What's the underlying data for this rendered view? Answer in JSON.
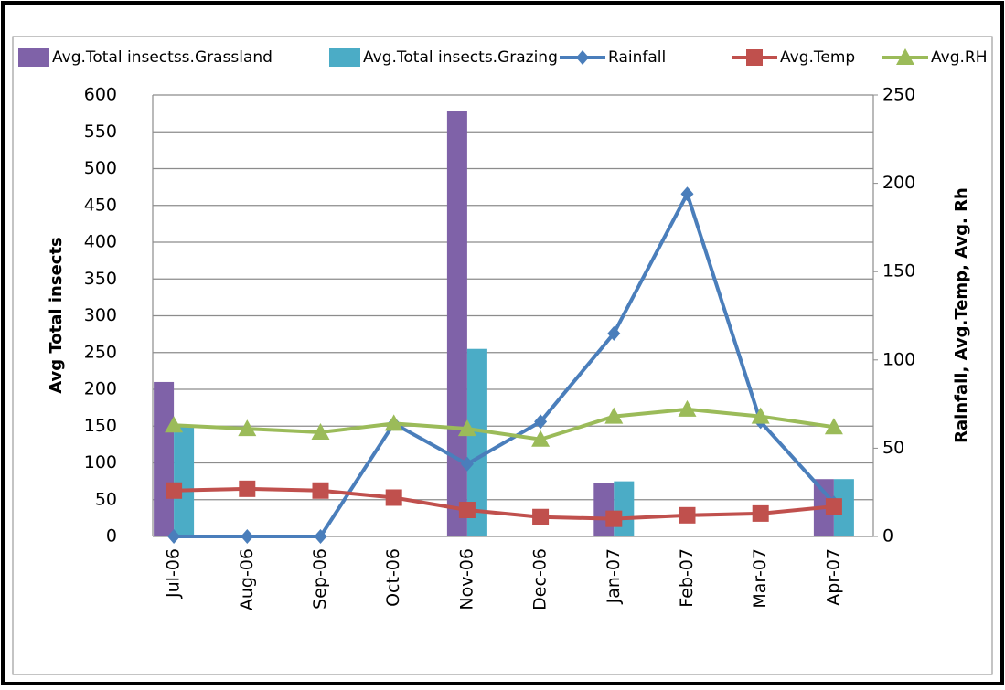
{
  "chart_data": {
    "type": "bar",
    "categories": [
      "Jul-06",
      "Aug-06",
      "Sep-06",
      "Oct-06",
      "Nov-06",
      "Dec-06",
      "Jan-07",
      "Feb-07",
      "Mar-07",
      "Apr-07"
    ],
    "y_label": "Avg Total insects",
    "y2_label": "Rainfall, Avg.Temp, Avg. Rh",
    "ylim": [
      0,
      600
    ],
    "yticks": [
      0,
      50,
      100,
      150,
      200,
      250,
      300,
      350,
      400,
      450,
      500,
      550,
      600
    ],
    "y2lim": [
      0,
      250
    ],
    "y2ticks": [
      0,
      50,
      100,
      150,
      200,
      250
    ],
    "grid": true,
    "legend": "top",
    "series": [
      {
        "name": "Avg.Total insectss.Grassland",
        "type": "bar",
        "color": "#7f62a8",
        "values": [
          210,
          0,
          0,
          0,
          578,
          0,
          73,
          0,
          0,
          78
        ]
      },
      {
        "name": "Avg.Total insects.Grazing",
        "type": "bar",
        "color": "#4bacc6",
        "values": [
          150,
          0,
          0,
          0,
          255,
          0,
          75,
          0,
          0,
          78
        ]
      },
      {
        "name": "Rainfall",
        "type": "line",
        "axis": "y2",
        "marker": "diamond",
        "color": "#4a7ebb",
        "values": [
          0,
          0,
          0,
          64,
          41,
          65,
          115,
          194,
          65,
          19
        ]
      },
      {
        "name": "Avg.Temp",
        "type": "line",
        "axis": "y2",
        "marker": "square",
        "color": "#c0504d",
        "values": [
          26,
          27,
          26,
          22,
          15,
          11,
          10,
          12,
          13,
          17
        ]
      },
      {
        "name": "Avg.RH",
        "type": "line",
        "axis": "y2",
        "marker": "triangle",
        "color": "#9bbb59",
        "values": [
          63,
          61,
          59,
          64,
          61,
          55,
          68,
          72,
          68,
          62
        ]
      }
    ]
  }
}
